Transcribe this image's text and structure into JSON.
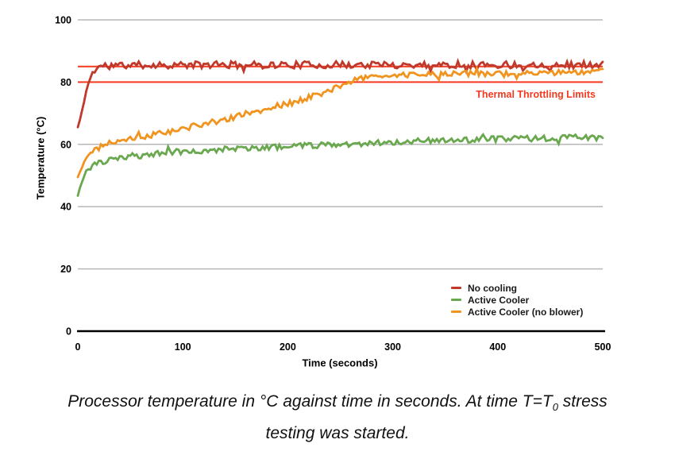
{
  "chart_data": {
    "type": "line",
    "title": "",
    "xlabel": "Time (seconds)",
    "ylabel": "Temperature (°C)",
    "xlim": [
      0,
      500
    ],
    "ylim": [
      0,
      100
    ],
    "x_ticks": [
      0,
      100,
      200,
      300,
      400,
      500
    ],
    "y_ticks": [
      0,
      20,
      40,
      60,
      80,
      100
    ],
    "grid": true,
    "grid_color": "#b7b7b7",
    "axis_color": "#000000",
    "legend_position": "inside-bottom-right",
    "annotation": {
      "text": "Thermal Throttling Limits",
      "color": "#f5391f"
    },
    "throttle_lines": {
      "values": [
        85,
        80
      ],
      "color": "#f5391f"
    },
    "series": [
      {
        "name": "No cooling",
        "color": "#c0392b",
        "noise": 1.15,
        "seed": 11,
        "points": [
          [
            0,
            65.5
          ],
          [
            3,
            69
          ],
          [
            6,
            74
          ],
          [
            9,
            78.5
          ],
          [
            12,
            81.5
          ],
          [
            15,
            83.5
          ],
          [
            19,
            84.8
          ],
          [
            25,
            85.3
          ],
          [
            60,
            85.5
          ],
          [
            500,
            85.6
          ]
        ]
      },
      {
        "name": "Active Cooler",
        "color": "#6aa84f",
        "noise": 0.95,
        "seed": 23,
        "points": [
          [
            0,
            43.5
          ],
          [
            2,
            46
          ],
          [
            5,
            49
          ],
          [
            8,
            51
          ],
          [
            12,
            52.5
          ],
          [
            18,
            53.6
          ],
          [
            25,
            54.4
          ],
          [
            35,
            55.2
          ],
          [
            50,
            56
          ],
          [
            70,
            56.9
          ],
          [
            90,
            57.5
          ],
          [
            115,
            58
          ],
          [
            145,
            58.6
          ],
          [
            180,
            59
          ],
          [
            220,
            59.6
          ],
          [
            260,
            60.2
          ],
          [
            300,
            60.8
          ],
          [
            350,
            61.3
          ],
          [
            400,
            61.7
          ],
          [
            450,
            62
          ],
          [
            500,
            62.3
          ]
        ]
      },
      {
        "name": "Active Cooler (no blower)",
        "color": "#f0941f",
        "noise": 0.9,
        "seed": 5,
        "points": [
          [
            0,
            49.5
          ],
          [
            3,
            52
          ],
          [
            6,
            54.2
          ],
          [
            10,
            56.2
          ],
          [
            15,
            57.8
          ],
          [
            22,
            59.5
          ],
          [
            30,
            60.5
          ],
          [
            45,
            61.3
          ],
          [
            60,
            62.3
          ],
          [
            80,
            63.6
          ],
          [
            100,
            65
          ],
          [
            120,
            66.5
          ],
          [
            140,
            68
          ],
          [
            160,
            69.7
          ],
          [
            180,
            71.3
          ],
          [
            200,
            73
          ],
          [
            215,
            74.4
          ],
          [
            230,
            76.2
          ],
          [
            245,
            78.2
          ],
          [
            258,
            80
          ],
          [
            270,
            81.2
          ],
          [
            285,
            82
          ],
          [
            310,
            82.4
          ],
          [
            360,
            82.6
          ],
          [
            420,
            82.9
          ],
          [
            500,
            83.4
          ]
        ]
      }
    ]
  },
  "caption": {
    "line1_pre": "Processor temperature in °C against time in seconds. At time T=T",
    "t_sub": "0",
    "line1_post": " stress",
    "line2": "testing was started."
  }
}
